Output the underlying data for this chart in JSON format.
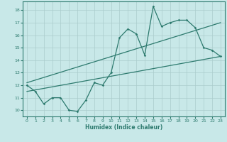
{
  "title": "",
  "xlabel": "Humidex (Indice chaleur)",
  "background_color": "#c8e8e8",
  "grid_color": "#b8d8d8",
  "line_color": "#2d7a6e",
  "xlim": [
    -0.5,
    23.5
  ],
  "ylim": [
    9.5,
    18.7
  ],
  "xticks": [
    0,
    1,
    2,
    3,
    4,
    5,
    6,
    7,
    8,
    9,
    10,
    11,
    12,
    13,
    14,
    15,
    16,
    17,
    18,
    19,
    20,
    21,
    22,
    23
  ],
  "yticks": [
    10,
    11,
    12,
    13,
    14,
    15,
    16,
    17,
    18
  ],
  "series1_x": [
    0,
    1,
    2,
    3,
    4,
    5,
    6,
    7,
    8,
    9,
    10,
    11,
    12,
    13,
    14,
    15,
    16,
    17,
    18,
    19,
    20,
    21,
    22,
    23
  ],
  "series1_y": [
    12.0,
    11.5,
    10.5,
    11.0,
    11.0,
    10.0,
    9.9,
    10.8,
    12.2,
    12.0,
    13.0,
    15.8,
    16.5,
    16.1,
    14.4,
    18.3,
    16.7,
    17.0,
    17.2,
    17.2,
    16.6,
    15.0,
    14.8,
    14.3
  ],
  "series2_x": [
    0,
    23
  ],
  "series2_y": [
    11.5,
    14.3
  ],
  "series3_x": [
    0,
    23
  ],
  "series3_y": [
    12.2,
    17.0
  ]
}
